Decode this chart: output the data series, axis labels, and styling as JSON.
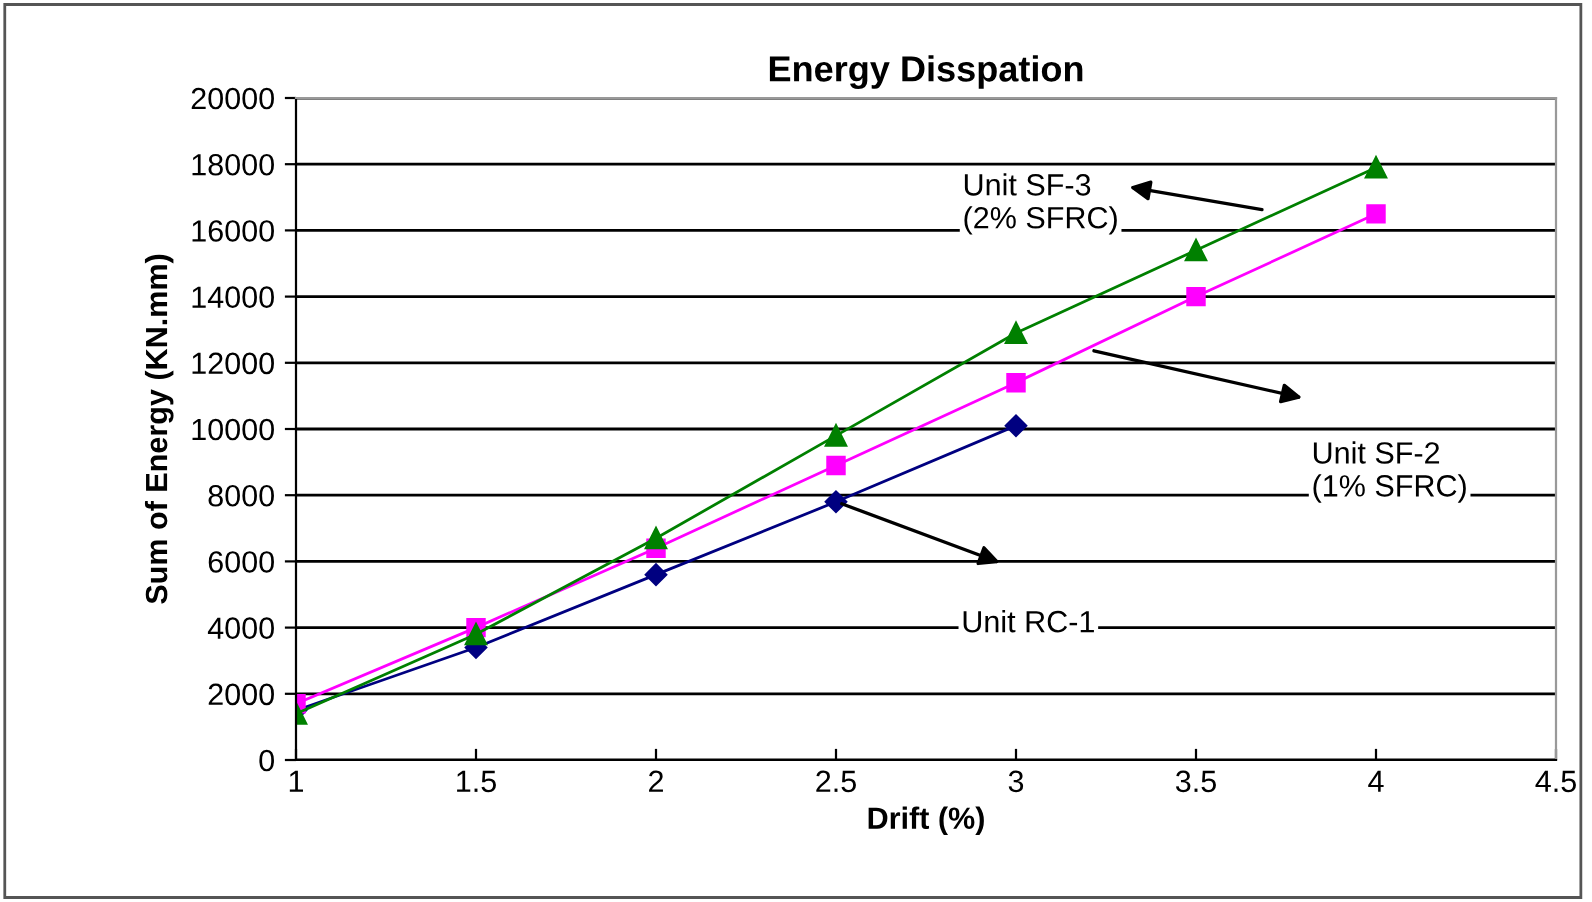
{
  "chart_data": {
    "type": "line",
    "title": "Energy Disspation",
    "xlabel": "Drift (%)",
    "ylabel": "Sum of Energy (KN.mm)",
    "x": [
      1,
      1.5,
      2,
      2.5,
      3,
      3.5,
      4
    ],
    "series": [
      {
        "color": "#000080",
        "marker": "diamond",
        "values": [
          1500,
          3400,
          5600,
          7800,
          10100,
          null,
          null
        ]
      },
      {
        "color": "#ff00ff",
        "marker": "square",
        "values": [
          1700,
          4000,
          6400,
          8900,
          11400,
          14000,
          16500
        ]
      },
      {
        "color": "#008000",
        "marker": "triangle",
        "values": [
          1400,
          3800,
          6700,
          9800,
          12900,
          15400,
          17900
        ]
      }
    ],
    "annotations": [
      "Unit RC-1",
      "Unit SF-2\n(1% SFRC)",
      "Unit SF-3\n(2% SFRC)"
    ],
    "xlim": [
      1,
      4.5
    ],
    "xticks": [
      1,
      1.5,
      2,
      2.5,
      3,
      3.5,
      4,
      4.5
    ],
    "ylim": [
      0,
      20000
    ],
    "yticks": [
      0,
      2000,
      4000,
      6000,
      8000,
      10000,
      12000,
      14000,
      16000,
      18000,
      20000
    ],
    "grid": "y",
    "legend": false,
    "line_style": "solid"
  }
}
